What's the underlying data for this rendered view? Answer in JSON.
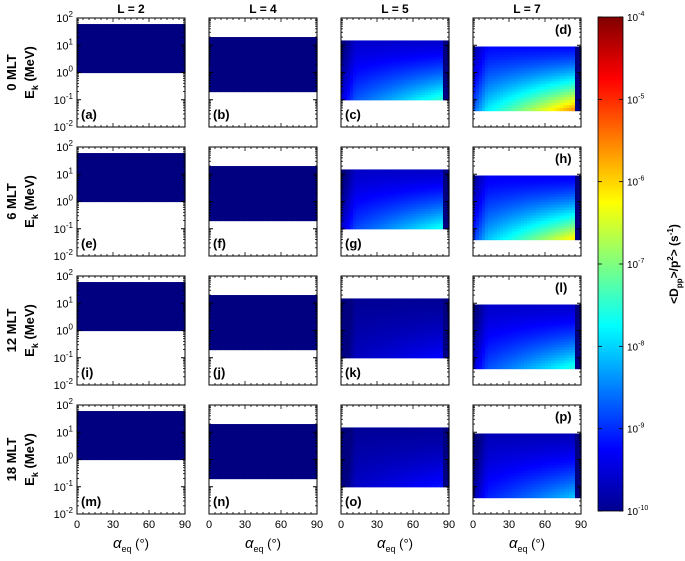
{
  "chart_data": {
    "type": "heatmap",
    "layout": {
      "rows": 4,
      "cols": 4
    },
    "col_titles": [
      "L = 2",
      "L = 4",
      "L = 5",
      "L = 7"
    ],
    "row_titles": [
      "0 MLT",
      "6 MLT",
      "12 MLT",
      "18 MLT"
    ],
    "ylabel_main": "E",
    "ylabel_sub": "k",
    "ylabel_unit": " (MeV)",
    "xlabel_main": "α",
    "xlabel_sub": "eq",
    "xlabel_unit": " (°)",
    "x_range": [
      0,
      90
    ],
    "x_ticks": [
      "0",
      "30",
      "60",
      "90"
    ],
    "y_range": [
      0.01,
      100
    ],
    "y_scale": "log",
    "y_tick_exponents": [
      "2",
      "1",
      "0",
      "-1",
      "-2"
    ],
    "y_tick_base": "10",
    "panel_labels": [
      "(a)",
      "(b)",
      "(c)",
      "(d)",
      "(e)",
      "(f)",
      "(g)",
      "(h)",
      "(i)",
      "(j)",
      "(k)",
      "(l)",
      "(m)",
      "(n)",
      "(o)",
      "(p)"
    ],
    "energy_range_by_L": {
      "L = 2": [
        1,
        60
      ],
      "L = 4": [
        0.2,
        20
      ],
      "L = 5": [
        0.1,
        15
      ],
      "L = 7": [
        0.04,
        9
      ]
    },
    "peak_log10_value_by_panel": [
      [
        -10,
        -10,
        -7.3,
        -5.3
      ],
      [
        -10,
        -10,
        -7.5,
        -5.9
      ],
      [
        -10,
        -10,
        -9.2,
        -7.4
      ],
      [
        -10,
        -10,
        -9.1,
        -8.0
      ]
    ],
    "colorbar": {
      "label_main": "<D",
      "label_sub": "pp",
      "label_rest": ">/p",
      "label_sup": "2",
      "label_end": "> (s",
      "label_end_sup": "-1",
      "label_close": ")",
      "range_log10": [
        -10,
        -4
      ],
      "tick_base": "10",
      "tick_exponents": [
        "-4",
        "-5",
        "-6",
        "-7",
        "-8",
        "-9",
        "-10"
      ],
      "colormap": "jet"
    }
  }
}
